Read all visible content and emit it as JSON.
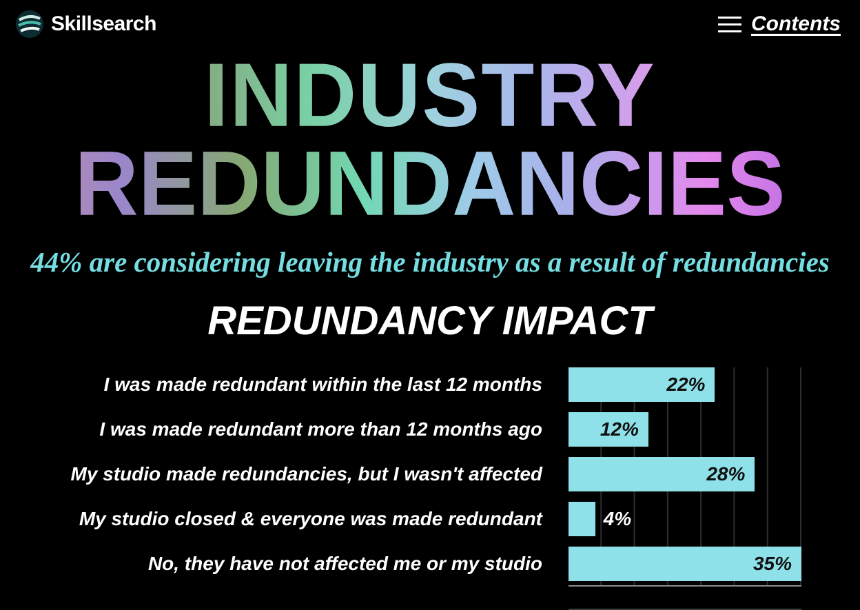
{
  "header": {
    "brand": "Skillsearch",
    "nav": {
      "contents_label": "Contents"
    }
  },
  "hero": {
    "title_line1": "INDUSTRY",
    "title_line2": "REDUNDANCIES",
    "subtitle": "44% are considering leaving the industry as a result of redundancies"
  },
  "chart_data": {
    "type": "bar",
    "orientation": "horizontal",
    "title": "REDUNDANCY IMPACT",
    "categories": [
      "I was made redundant within the last 12 months",
      "I was made redundant more than 12 months ago",
      "My studio made redundancies, but I wasn't affected",
      "My studio closed & everyone was made redundant",
      "No, they have not affected me or my studio"
    ],
    "values": [
      22,
      12,
      28,
      4,
      35
    ],
    "value_labels": [
      "22%",
      "12%",
      "28%",
      "4%",
      "35%"
    ],
    "xlim": [
      0,
      35
    ],
    "gridline_step": 5,
    "grid": true,
    "legend": false,
    "bar_color": "#8ee1e9",
    "value_label_color_inside": "#101010",
    "value_label_color_outside": "#ffffff"
  },
  "colors": {
    "background": "#000000",
    "accent_cyan": "#74dee3",
    "bar_cyan": "#8ee1e9",
    "text": "#ffffff",
    "gridline": "#2e2e2e",
    "baseline": "#8b8b8b"
  }
}
